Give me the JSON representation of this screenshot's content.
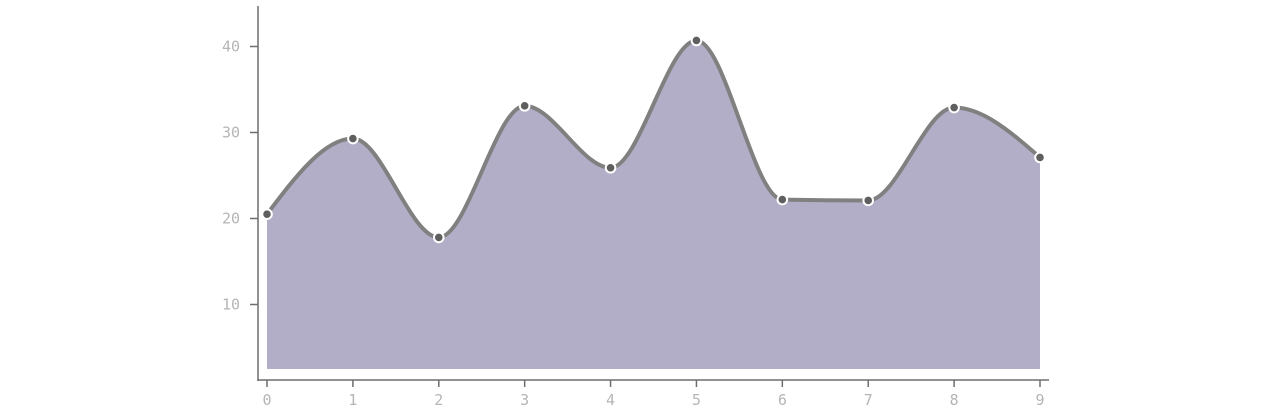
{
  "chart_data": {
    "type": "area",
    "title": "",
    "xlabel": "",
    "ylabel": "",
    "x": [
      0,
      1,
      2,
      3,
      4,
      5,
      6,
      7,
      8,
      9
    ],
    "series": [
      {
        "values": [
          20.5,
          29.3,
          17.8,
          33.1,
          25.9,
          40.7,
          22.2,
          22.1,
          32.9,
          27.1
        ]
      }
    ],
    "xlim": [
      0,
      9
    ],
    "ylim": [
      0,
      45
    ],
    "area_baseline": 2.5,
    "y_ticks": [
      10,
      20,
      30,
      40
    ],
    "x_ticks": [
      0,
      1,
      2,
      3,
      4,
      5,
      6,
      7,
      8,
      9
    ],
    "grid": false,
    "legend": "none",
    "smooth": true,
    "colors": {
      "area_fill": "#b3aec7",
      "line": "#808080",
      "marker_fill": "#5f5f5f",
      "marker_stroke": "#ffffff",
      "axis": "#6e6e6e",
      "tick_text": "#b5b5b5"
    }
  }
}
